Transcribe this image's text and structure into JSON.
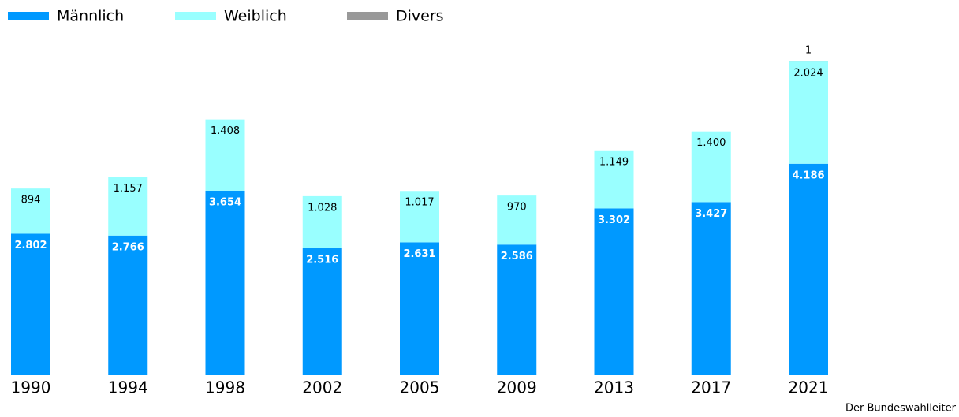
{
  "chart_data": {
    "type": "bar",
    "stacked": true,
    "categories": [
      "1990",
      "1994",
      "1998",
      "2002",
      "2005",
      "2009",
      "2013",
      "2017",
      "2021"
    ],
    "series": [
      {
        "name": "Männlich",
        "color": "#0099ff",
        "values": [
          2802,
          2766,
          3654,
          2516,
          2631,
          2586,
          3302,
          3427,
          4186
        ],
        "value_labels": [
          "2.802",
          "2.766",
          "3.654",
          "2.516",
          "2.631",
          "2.586",
          "3.302",
          "3.427",
          "4.186"
        ]
      },
      {
        "name": "Weiblich",
        "color": "#99ffff",
        "values": [
          894,
          1157,
          1408,
          1028,
          1017,
          970,
          1149,
          1400,
          2024
        ],
        "value_labels": [
          "894",
          "1.157",
          "1.408",
          "1.028",
          "1.017",
          "970",
          "1.149",
          "1.400",
          "2.024"
        ]
      },
      {
        "name": "Divers",
        "color": "#999999",
        "values": [
          null,
          null,
          null,
          null,
          null,
          null,
          null,
          null,
          1
        ]
      }
    ],
    "source": "Der Bundeswahlleiter"
  }
}
